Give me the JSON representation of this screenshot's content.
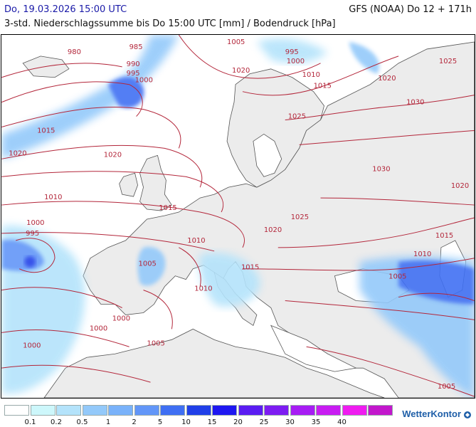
{
  "header": {
    "datetime": "Do, 19.03.2026 15:00 UTC",
    "subtitle": "3-std. Niederschlagssumme bis Do 15:00 UTC [mm] / Bodendruck [hPa]",
    "model": "GFS (NOAA) Do 12 + 171h"
  },
  "isobar_labels": [
    {
      "v": "980"
    },
    {
      "v": "985"
    },
    {
      "v": "990"
    },
    {
      "v": "995"
    },
    {
      "v": "1000"
    },
    {
      "v": "1005"
    },
    {
      "v": "995"
    },
    {
      "v": "1000"
    },
    {
      "v": "1010"
    },
    {
      "v": "1015"
    },
    {
      "v": "1020"
    },
    {
      "v": "1025"
    },
    {
      "v": "1020"
    },
    {
      "v": "1030"
    },
    {
      "v": "1025"
    },
    {
      "v": "1015"
    },
    {
      "v": "1020"
    },
    {
      "v": "1020"
    },
    {
      "v": "1030"
    },
    {
      "v": "1020"
    },
    {
      "v": "1010"
    },
    {
      "v": "1015"
    },
    {
      "v": "1025"
    },
    {
      "v": "1000"
    },
    {
      "v": "995"
    },
    {
      "v": "1020"
    },
    {
      "v": "1010"
    },
    {
      "v": "1015"
    },
    {
      "v": "1015"
    },
    {
      "v": "1010"
    },
    {
      "v": "1005"
    },
    {
      "v": "1010"
    },
    {
      "v": "1005"
    },
    {
      "v": "1000"
    },
    {
      "v": "1000"
    },
    {
      "v": "1000"
    },
    {
      "v": "1005"
    },
    {
      "v": "1005"
    }
  ],
  "legend": {
    "colors": [
      "#ffffff",
      "#cdf7fb",
      "#b4e3fb",
      "#93c9fa",
      "#79b2fa",
      "#6296f8",
      "#3f6ff3",
      "#203fe8",
      "#1e17f1",
      "#5a1cf2",
      "#7d1cf2",
      "#a71cf4",
      "#c81cf2",
      "#ef1cf0",
      "#c217cc"
    ],
    "values": [
      "0.1",
      "0.2",
      "0.5",
      "1",
      "2",
      "5",
      "10",
      "15",
      "20",
      "25",
      "30",
      "35",
      "40"
    ]
  },
  "brand": "WetterKontor",
  "colors": {
    "isobar": "#b3263a",
    "coast": "#444444",
    "header_date": "#1a1aa8"
  }
}
